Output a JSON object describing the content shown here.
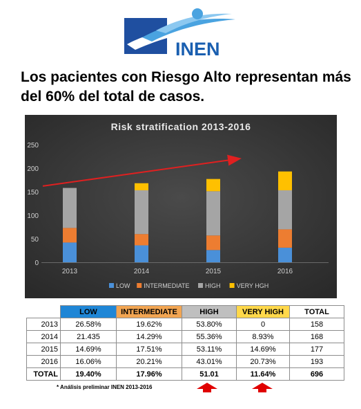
{
  "logo": {
    "text": "INEN"
  },
  "headline": "Los pacientes con Riesgo Alto representan más del 60%  del total de casos.",
  "chart_data": {
    "type": "bar",
    "stacked": true,
    "title": "Risk stratification  2013-2016",
    "categories": [
      "2013",
      "2014",
      "2015",
      "2016"
    ],
    "ylim": [
      0,
      250
    ],
    "yticks": [
      0,
      50,
      100,
      150,
      200,
      250
    ],
    "grid": false,
    "legend_position": "bottom",
    "background": "#3a3a3a",
    "series": [
      {
        "name": "LOW",
        "color": "#4a90d9",
        "values": [
          42,
          36,
          26,
          31
        ]
      },
      {
        "name": "INTERMEDIATE",
        "color": "#ed7d31",
        "values": [
          31,
          24,
          31,
          39
        ]
      },
      {
        "name": "HIGH",
        "color": "#a5a5a5",
        "values": [
          85,
          93,
          94,
          83
        ]
      },
      {
        "name": "VERY HGH",
        "color": "#ffc000",
        "values": [
          0,
          15,
          26,
          40
        ]
      }
    ],
    "trend_arrow": {
      "color": "#e02020"
    }
  },
  "table": {
    "headers": [
      "LOW",
      "INTERMEDIATE",
      "HIGH",
      "VERY HIGH",
      "TOTAL"
    ],
    "header_colors": [
      "#1f86d6",
      "#f2a552",
      "#bfbfbf",
      "#ffd84a",
      "#ffffff"
    ],
    "rows": [
      {
        "year": "2013",
        "cells": [
          "26.58%",
          "19.62%",
          "53.80%",
          "0",
          "158"
        ]
      },
      {
        "year": "2014",
        "cells": [
          "21.435",
          "14.29%",
          "55.36%",
          "8.93%",
          "168"
        ]
      },
      {
        "year": "2015",
        "cells": [
          "14.69%",
          "17.51%",
          "53.11%",
          "14.69%",
          "177"
        ]
      },
      {
        "year": "2016",
        "cells": [
          "16.06%",
          "20.21%",
          "43.01%",
          "20.73%",
          "193"
        ]
      }
    ],
    "total_row": {
      "label": "TOTAL",
      "cells": [
        "19.40%",
        "17.96%",
        "51.01",
        "11.64%",
        "696"
      ]
    }
  },
  "footnote": "* Análisis preliminar INEN 2013-2016",
  "arrow_color": "#e00000"
}
